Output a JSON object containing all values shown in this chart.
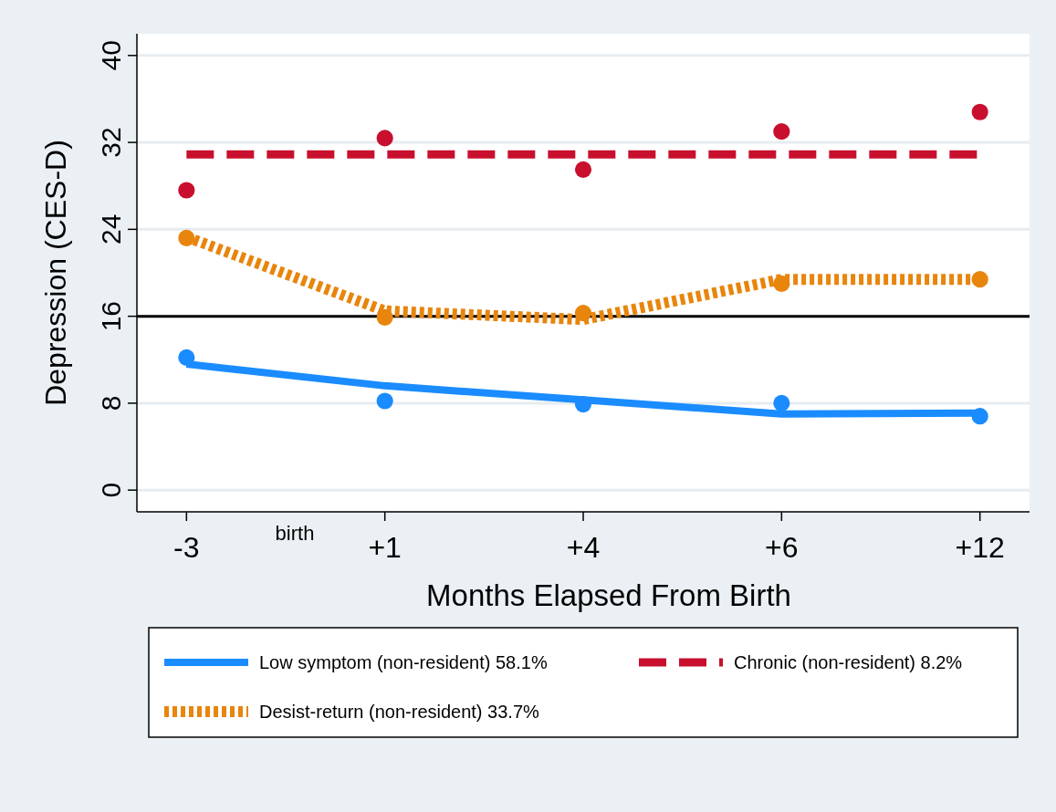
{
  "chart_data": {
    "type": "line",
    "xlabel": "Months Elapsed From Birth",
    "ylabel": "Depression (CES-D)",
    "categories": [
      "-3",
      "+1",
      "+4",
      "+6",
      "+12"
    ],
    "ylim": [
      -2,
      42
    ],
    "yticks": [
      0,
      8,
      16,
      24,
      32,
      40
    ],
    "grid": "y",
    "legend": "bottom",
    "marker": "none",
    "annotations": [
      "birth"
    ],
    "ref_lines": [
      {
        "axis": "y",
        "value": 16,
        "color": "#000000",
        "line_style": "solid"
      }
    ],
    "series": [
      {
        "name": "Low symptom (non-resident)  58.1%",
        "color": "#1a8cff",
        "line_style": "solid",
        "values": [
          11.6,
          9.6,
          8.3,
          7.0,
          7.1
        ]
      },
      {
        "name": "Chronic (non-resident)  8.2%",
        "color": "#c8102e",
        "line_style": "dashed",
        "values": [
          30.9,
          30.9,
          30.9,
          30.9,
          30.9
        ]
      },
      {
        "name": "Desist-return (non-resident)  33.7%",
        "color": "#e8850c",
        "line_style": "dotted",
        "values": [
          23.3,
          16.5,
          15.7,
          19.4,
          19.4
        ]
      },
      {
        "color": "#1a8cff",
        "type": "scatter",
        "marker": "circle",
        "values": [
          12.2,
          8.2,
          7.9,
          8.0,
          6.8
        ]
      },
      {
        "color": "#c8102e",
        "type": "scatter",
        "marker": "circle",
        "values": [
          27.6,
          32.4,
          29.5,
          33.0,
          34.8
        ]
      },
      {
        "color": "#e8850c",
        "type": "scatter",
        "marker": "circle",
        "values": [
          23.2,
          15.9,
          16.3,
          19.0,
          19.4
        ]
      }
    ]
  }
}
